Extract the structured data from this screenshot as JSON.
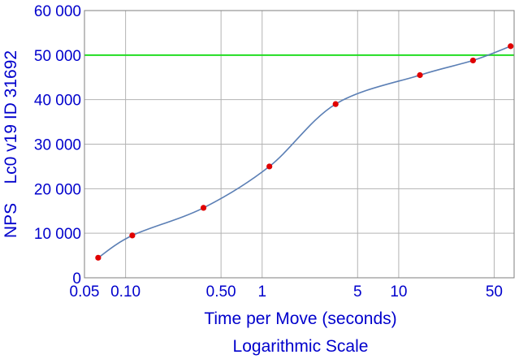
{
  "chart_data": {
    "type": "line",
    "xscale": "log",
    "xlabel_lines": [
      "Time per Move  (seconds)",
      "Logarithmic Scale"
    ],
    "ylabel": "NPS    Lc0 v19 ID 31692",
    "xlim": [
      0.05,
      70
    ],
    "ylim": [
      0,
      60000
    ],
    "x_ticks": [
      {
        "value": 0.05,
        "label": "0.05"
      },
      {
        "value": 0.1,
        "label": "0.10"
      },
      {
        "value": 0.5,
        "label": "0.50"
      },
      {
        "value": 1,
        "label": "1"
      },
      {
        "value": 5,
        "label": "5"
      },
      {
        "value": 10,
        "label": "10"
      },
      {
        "value": 50,
        "label": "50"
      }
    ],
    "y_ticks": [
      {
        "value": 0,
        "label": "0"
      },
      {
        "value": 10000,
        "label": "10 000"
      },
      {
        "value": 20000,
        "label": "20 000"
      },
      {
        "value": 30000,
        "label": "30 000"
      },
      {
        "value": 40000,
        "label": "40 000"
      },
      {
        "value": 50000,
        "label": "50 000"
      },
      {
        "value": 60000,
        "label": "60 000"
      }
    ],
    "grid": true,
    "reference_line": {
      "y": 50000,
      "color": "#22dd22"
    },
    "series": [
      {
        "color": "#5b7fb5",
        "marker_color": "#e00000",
        "x": [
          0.063,
          0.112,
          0.372,
          1.13,
          3.45,
          14.3,
          35.0,
          66.0
        ],
        "y": [
          4500,
          9500,
          15700,
          25000,
          39000,
          45500,
          48800,
          52000
        ]
      }
    ]
  }
}
